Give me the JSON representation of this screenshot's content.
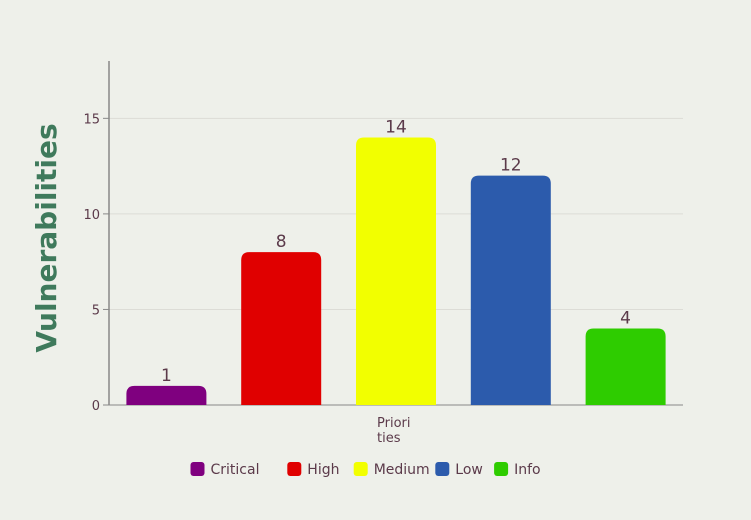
{
  "chart_data": {
    "type": "bar",
    "title": "",
    "xlabel": "Priorities",
    "xlabel_lines": [
      "Priori",
      "ties"
    ],
    "ylabel": "Vulnerabilities",
    "ylim": [
      0,
      18
    ],
    "yticks": [
      0,
      5,
      10,
      15
    ],
    "grid": true,
    "legend_position": "bottom",
    "categories": [
      "Critical",
      "High",
      "Medium",
      "Low",
      "Info"
    ],
    "values": [
      1,
      8,
      14,
      12,
      4
    ],
    "colors": [
      "#7f007f",
      "#e00000",
      "#f2ff00",
      "#2c5bac",
      "#2ecc00"
    ]
  }
}
